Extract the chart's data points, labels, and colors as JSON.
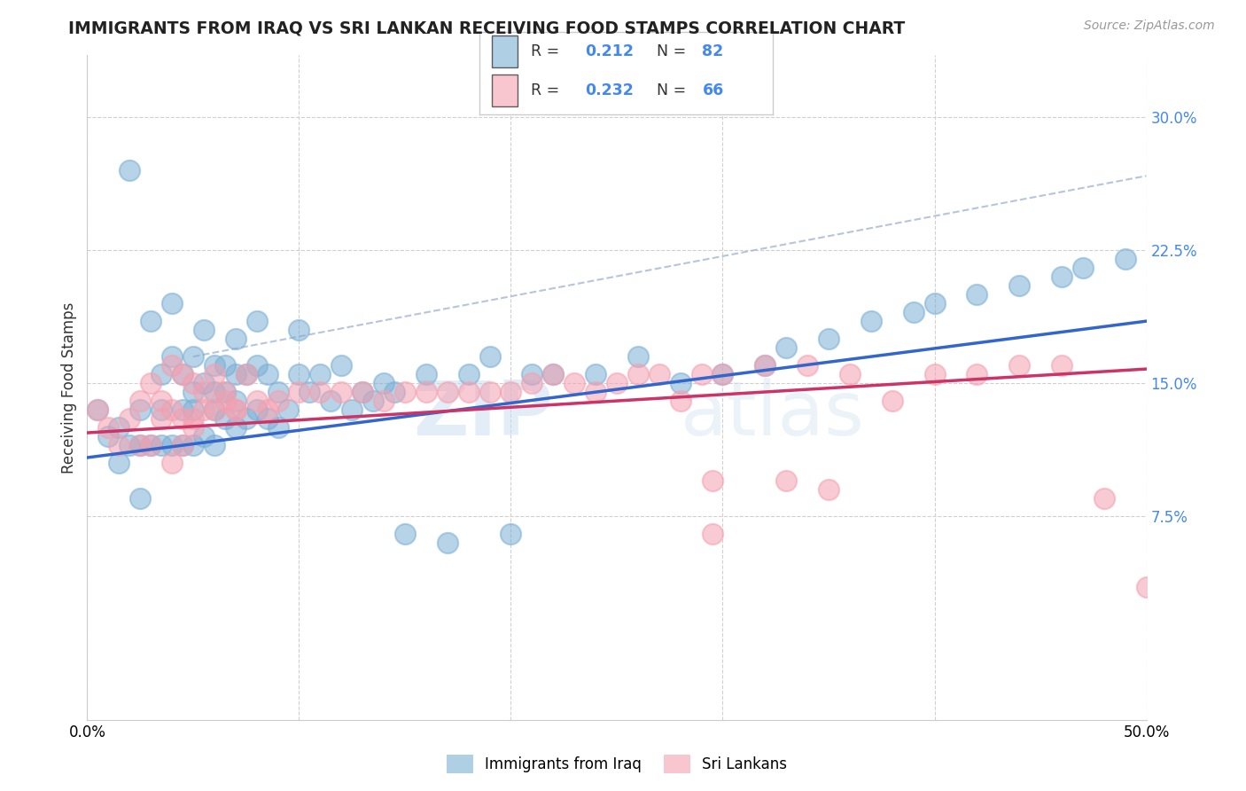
{
  "title": "IMMIGRANTS FROM IRAQ VS SRI LANKAN RECEIVING FOOD STAMPS CORRELATION CHART",
  "source": "Source: ZipAtlas.com",
  "ylabel": "Receiving Food Stamps",
  "xlim": [
    0.0,
    0.5
  ],
  "ylim": [
    -0.04,
    0.335
  ],
  "iraq_color": "#7bafd4",
  "sri_color": "#f4a0b0",
  "iraq_line_color": "#3366cc",
  "sri_line_color": "#cc3366",
  "dash_color": "#aabbd4",
  "iraq_R": 0.212,
  "iraq_N": 82,
  "sri_R": 0.232,
  "sri_N": 66,
  "legend_label_iraq": "Immigrants from Iraq",
  "legend_label_sri": "Sri Lankans",
  "watermark_zip": "ZIP",
  "watermark_atlas": "atlas",
  "background_color": "#ffffff",
  "grid_color": "#d0d0d0",
  "iraq_scatter_x": [
    0.005,
    0.01,
    0.015,
    0.02,
    0.02,
    0.025,
    0.025,
    0.03,
    0.03,
    0.035,
    0.035,
    0.035,
    0.04,
    0.04,
    0.04,
    0.045,
    0.045,
    0.045,
    0.05,
    0.05,
    0.05,
    0.05,
    0.055,
    0.055,
    0.055,
    0.06,
    0.06,
    0.06,
    0.06,
    0.065,
    0.065,
    0.065,
    0.07,
    0.07,
    0.07,
    0.07,
    0.075,
    0.075,
    0.08,
    0.08,
    0.08,
    0.085,
    0.085,
    0.09,
    0.09,
    0.095,
    0.1,
    0.1,
    0.105,
    0.11,
    0.115,
    0.12,
    0.125,
    0.13,
    0.135,
    0.14,
    0.145,
    0.15,
    0.16,
    0.17,
    0.18,
    0.19,
    0.2,
    0.21,
    0.22,
    0.24,
    0.26,
    0.28,
    0.3,
    0.32,
    0.33,
    0.35,
    0.37,
    0.39,
    0.4,
    0.42,
    0.44,
    0.46,
    0.47,
    0.49,
    0.015,
    0.025
  ],
  "iraq_scatter_y": [
    0.135,
    0.12,
    0.125,
    0.27,
    0.115,
    0.135,
    0.115,
    0.185,
    0.115,
    0.155,
    0.135,
    0.115,
    0.195,
    0.165,
    0.115,
    0.155,
    0.135,
    0.115,
    0.165,
    0.145,
    0.135,
    0.115,
    0.18,
    0.15,
    0.12,
    0.16,
    0.145,
    0.135,
    0.115,
    0.16,
    0.145,
    0.13,
    0.175,
    0.155,
    0.14,
    0.125,
    0.155,
    0.13,
    0.185,
    0.16,
    0.135,
    0.155,
    0.13,
    0.145,
    0.125,
    0.135,
    0.18,
    0.155,
    0.145,
    0.155,
    0.14,
    0.16,
    0.135,
    0.145,
    0.14,
    0.15,
    0.145,
    0.065,
    0.155,
    0.06,
    0.155,
    0.165,
    0.065,
    0.155,
    0.155,
    0.155,
    0.165,
    0.15,
    0.155,
    0.16,
    0.17,
    0.175,
    0.185,
    0.19,
    0.195,
    0.2,
    0.205,
    0.21,
    0.215,
    0.22,
    0.105,
    0.085
  ],
  "sri_scatter_x": [
    0.005,
    0.01,
    0.015,
    0.02,
    0.025,
    0.03,
    0.035,
    0.04,
    0.04,
    0.045,
    0.045,
    0.05,
    0.05,
    0.055,
    0.06,
    0.065,
    0.07,
    0.075,
    0.08,
    0.085,
    0.09,
    0.1,
    0.11,
    0.12,
    0.13,
    0.14,
    0.15,
    0.16,
    0.17,
    0.18,
    0.19,
    0.2,
    0.21,
    0.22,
    0.23,
    0.24,
    0.25,
    0.26,
    0.27,
    0.28,
    0.29,
    0.3,
    0.32,
    0.34,
    0.36,
    0.38,
    0.4,
    0.42,
    0.44,
    0.46,
    0.025,
    0.03,
    0.035,
    0.04,
    0.045,
    0.05,
    0.055,
    0.06,
    0.065,
    0.07,
    0.295,
    0.33,
    0.35,
    0.48,
    0.295,
    0.5
  ],
  "sri_scatter_y": [
    0.135,
    0.125,
    0.115,
    0.13,
    0.14,
    0.15,
    0.14,
    0.16,
    0.135,
    0.155,
    0.13,
    0.15,
    0.13,
    0.145,
    0.155,
    0.14,
    0.135,
    0.155,
    0.14,
    0.135,
    0.14,
    0.145,
    0.145,
    0.145,
    0.145,
    0.14,
    0.145,
    0.145,
    0.145,
    0.145,
    0.145,
    0.145,
    0.15,
    0.155,
    0.15,
    0.145,
    0.15,
    0.155,
    0.155,
    0.14,
    0.155,
    0.155,
    0.16,
    0.16,
    0.155,
    0.14,
    0.155,
    0.155,
    0.16,
    0.16,
    0.115,
    0.115,
    0.13,
    0.105,
    0.115,
    0.125,
    0.135,
    0.135,
    0.145,
    0.135,
    0.095,
    0.095,
    0.09,
    0.085,
    0.065,
    0.035
  ],
  "yticks_right": [
    0.075,
    0.15,
    0.225,
    0.3
  ],
  "ytick_labels_right": [
    "7.5%",
    "15.0%",
    "22.5%",
    "30.0%"
  ]
}
